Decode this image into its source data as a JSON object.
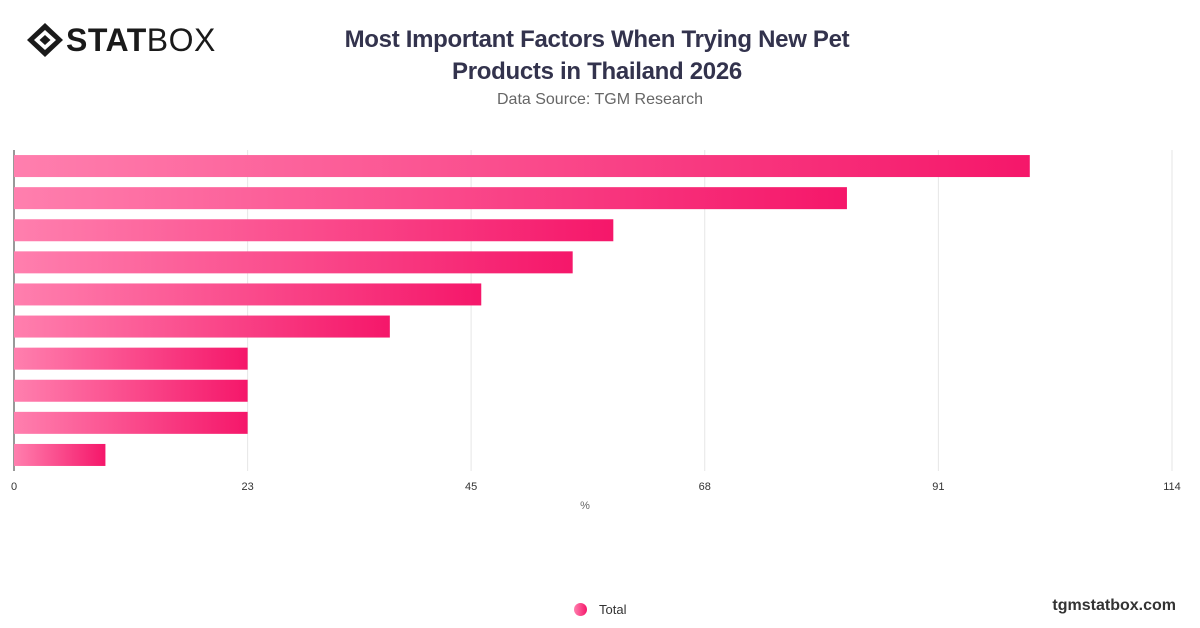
{
  "brand": {
    "name_bold": "STAT",
    "name_light": "BOX"
  },
  "header": {
    "title": "Most Important Factors When Trying New Pet Products in Thailand 2026",
    "subtitle": "Data Source: TGM Research"
  },
  "legend": {
    "label": "Total"
  },
  "footer": {
    "site": "tgmstatbox.com"
  },
  "colors": {
    "bar_start": "#ff7fae",
    "bar_end": "#f5176a",
    "grid": "#e6e6e6",
    "axis": "#333333"
  },
  "chart_data": {
    "type": "bar",
    "orientation": "horizontal",
    "categories": [
      "",
      "",
      "",
      "",
      "",
      "",
      "",
      "",
      "",
      ""
    ],
    "series": [
      {
        "name": "Total",
        "values": [
          100,
          82,
          59,
          55,
          46,
          37,
          23,
          23,
          23,
          9
        ]
      }
    ],
    "xlabel": "%",
    "xlim": [
      0,
      114
    ],
    "xticks": [
      0,
      23,
      45,
      68,
      91,
      114
    ],
    "grid": true,
    "legend_position": "bottom-center"
  }
}
